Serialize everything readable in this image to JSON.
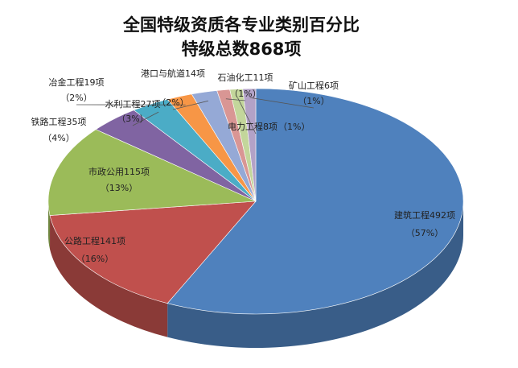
{
  "chart_data": {
    "type": "pie3d",
    "title": "全国特级资质各专业类别百分比",
    "subtitle": "特级总数868项",
    "categories": [
      "建筑工程492项",
      "公路工程141项",
      "市政公用115项",
      "铁路工程35项",
      "水利工程27项",
      "冶金工程19项",
      "港口与航道14项",
      "石油化工11项",
      "电力工程8项",
      "矿山工程6项"
    ],
    "values": [
      57,
      16,
      13,
      4,
      3,
      2,
      2,
      1,
      1,
      1
    ],
    "value_labels": [
      "（57%）",
      "（16%）",
      "（13%）",
      "（4%）",
      "（3%）",
      "（2%）",
      "（2%）",
      "（1%）",
      "（1%）",
      "（1%）"
    ],
    "colors": [
      "#4f81bd",
      "#c0504d",
      "#9bbb59",
      "#8064a2",
      "#4bacc6",
      "#f79646",
      "#95a9d6",
      "#d99694",
      "#c3d69b",
      "#b3a2c7"
    ]
  }
}
